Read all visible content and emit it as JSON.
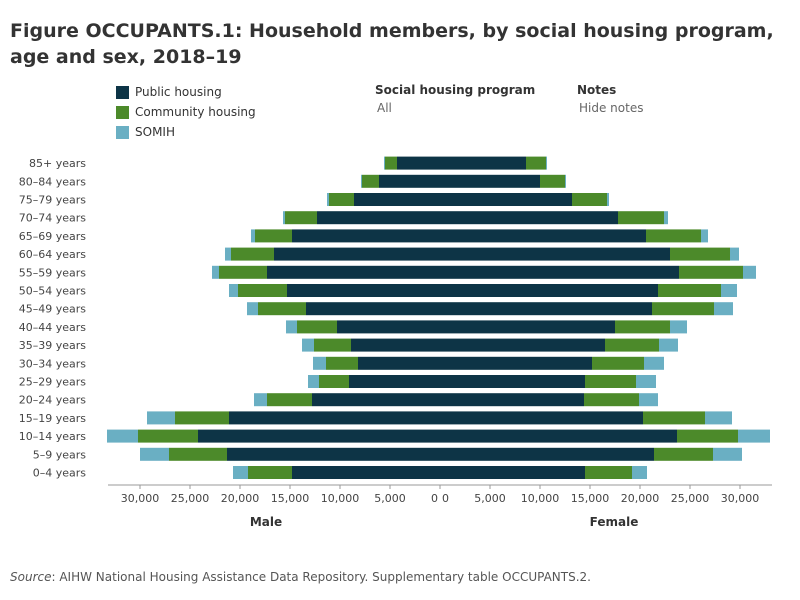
{
  "title": "Figure OCCUPANTS.1: Household members, by social housing program, age and sex, 2018–19",
  "legend": {
    "items": [
      {
        "label": "Public housing",
        "color": "#0d3446"
      },
      {
        "label": "Community housing",
        "color": "#4c8a2a"
      },
      {
        "label": "SOMIH",
        "color": "#6aafc3"
      }
    ]
  },
  "filters": {
    "program_label": "Social housing program",
    "program_value": "All",
    "notes_label": "Notes",
    "notes_value": "Hide notes"
  },
  "source": {
    "prefix": "Source",
    "text": ": AIHW National Housing Assistance Data Repository. Supplementary table OCCUPANTS.2."
  },
  "chart_data": {
    "type": "bar",
    "orientation": "horizontal-diverging",
    "sides": [
      {
        "name": "Male"
      },
      {
        "name": "Female"
      }
    ],
    "categories": [
      "85+ years",
      "80–84 years",
      "75–79 years",
      "70–74 years",
      "65–69 years",
      "60–64 years",
      "55–59 years",
      "50–54 years",
      "45–49 years",
      "40–44 years",
      "35–39 years",
      "30–34 years",
      "25–29 years",
      "20–24 years",
      "15–19 years",
      "10–14 years",
      "5–9 years",
      "0–4 years"
    ],
    "series": [
      {
        "name": "Public housing",
        "color": "#0d3446",
        "male": [
          4300,
          6100,
          8600,
          12300,
          14800,
          16600,
          17300,
          15300,
          13400,
          10300,
          8900,
          8200,
          9100,
          12800,
          21100,
          24200,
          21300,
          14800
        ],
        "female": [
          8600,
          10000,
          13200,
          17800,
          20600,
          23000,
          23900,
          21800,
          21200,
          17500,
          16500,
          15200,
          14500,
          14400,
          20300,
          23700,
          21400,
          14500
        ]
      },
      {
        "name": "Community housing",
        "color": "#4c8a2a",
        "male": [
          1200,
          1700,
          2500,
          3200,
          3700,
          4300,
          4800,
          4900,
          4800,
          4000,
          3700,
          3200,
          3000,
          4500,
          5400,
          6000,
          5800,
          4400
        ],
        "female": [
          2000,
          2500,
          3500,
          4600,
          5500,
          6000,
          6400,
          6300,
          6200,
          5500,
          5400,
          5200,
          5100,
          5500,
          6200,
          6100,
          5900,
          4700
        ]
      },
      {
        "name": "SOMIH",
        "color": "#6aafc3",
        "male": [
          100,
          100,
          200,
          200,
          400,
          600,
          700,
          900,
          1100,
          1100,
          1200,
          1300,
          1100,
          1300,
          2800,
          3100,
          2900,
          1500
        ],
        "female": [
          100,
          100,
          200,
          400,
          700,
          900,
          1300,
          1600,
          1900,
          1700,
          1900,
          2000,
          2000,
          1900,
          2700,
          3200,
          2900,
          1500
        ]
      }
    ],
    "x_ticks_male": [
      "30,000",
      "25,000",
      "20,000",
      "15,000",
      "10,000",
      "5,000",
      "0"
    ],
    "x_ticks_female": [
      "0",
      "5,000",
      "10,000",
      "15,000",
      "20,000",
      "25,000",
      "30,000"
    ],
    "xlim": [
      0,
      33000
    ],
    "grid": false,
    "legend_position": "top-left"
  }
}
